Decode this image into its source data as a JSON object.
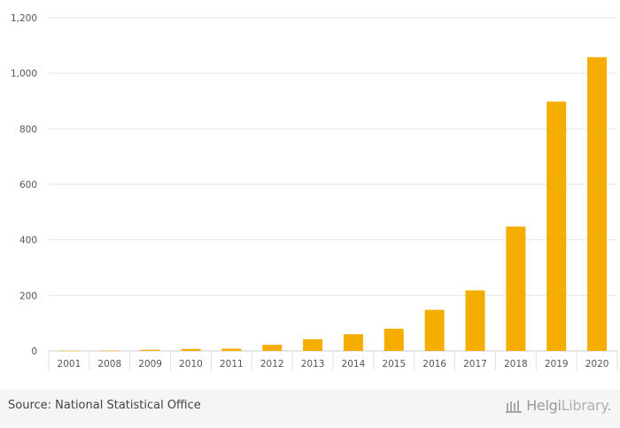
{
  "chart_data": {
    "type": "bar",
    "categories": [
      "2001",
      "2008",
      "2009",
      "2010",
      "2011",
      "2012",
      "2013",
      "2014",
      "2015",
      "2016",
      "2017",
      "2018",
      "2019",
      "2020"
    ],
    "values": [
      0.5,
      0.8,
      4,
      7,
      8,
      22,
      42,
      60,
      80,
      148,
      218,
      448,
      898,
      1058
    ],
    "ylim": [
      0,
      1200
    ],
    "yticks": [
      0,
      200,
      400,
      600,
      800,
      1000,
      1200
    ],
    "ytick_labels": [
      "0",
      "200",
      "400",
      "600",
      "800",
      "1,000",
      "1,200"
    ],
    "bar_color": "#f5ae00",
    "grid": true
  },
  "footer": {
    "source": "Source: National Statistical Office",
    "logo_main": "Helgi",
    "logo_suffix": "Library."
  }
}
